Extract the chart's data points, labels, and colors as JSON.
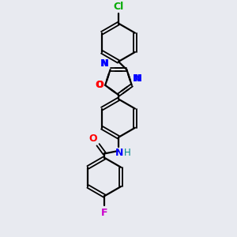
{
  "background_color": "#e8eaf0",
  "bond_color": "#000000",
  "atom_colors": {
    "N": "#0000ff",
    "O": "#ff0000",
    "F": "#cc00cc",
    "Cl": "#00aa00",
    "H": "#008888",
    "C": "#000000"
  },
  "figsize": [
    3.0,
    3.0
  ],
  "dpi": 100
}
